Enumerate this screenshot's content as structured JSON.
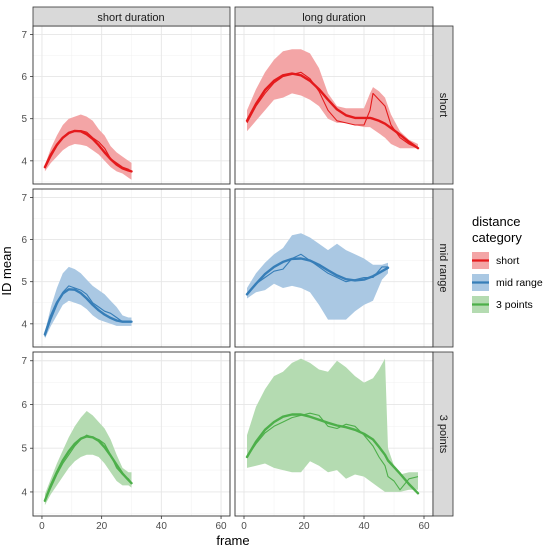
{
  "chart_data": {
    "type": "line",
    "xlabel": "frame",
    "ylabel": "ID mean",
    "x_ticks": [
      0,
      20,
      40,
      60
    ],
    "y_ticks": [
      4,
      5,
      6,
      7
    ],
    "xlim": [
      -3,
      63
    ],
    "ylim": [
      3.45,
      7.2
    ],
    "grid": true,
    "column_facets": [
      "short duration",
      "long duration"
    ],
    "row_facets": [
      "short",
      "mid range",
      "3 points"
    ],
    "legend": {
      "title": [
        "distance",
        "category"
      ],
      "position": "right",
      "entries": [
        "short",
        "mid range",
        "3 points"
      ]
    },
    "colors": {
      "short": "#e41a1c",
      "mid range": "#377eb8",
      "3 points": "#4daf4a",
      "short_fill": "#f3a5a6",
      "mid range_fill": "#aac8e3",
      "3 points_fill": "#b4dbb1"
    },
    "panels": [
      {
        "column": "short duration",
        "row": "short",
        "category": "short",
        "x": [
          1,
          3,
          5,
          7,
          9,
          11,
          13,
          15,
          17,
          19,
          21,
          23,
          25,
          27,
          29,
          30
        ],
        "mean": [
          3.82,
          4.1,
          4.35,
          4.55,
          4.68,
          4.72,
          4.72,
          4.68,
          4.55,
          4.45,
          4.3,
          4.05,
          3.95,
          3.85,
          3.8,
          3.75
        ],
        "lower": [
          3.75,
          3.95,
          4.1,
          4.25,
          4.35,
          4.4,
          4.38,
          4.35,
          4.25,
          4.15,
          4.0,
          3.85,
          3.75,
          3.7,
          3.6,
          3.55
        ],
        "upper": [
          3.9,
          4.3,
          4.6,
          4.85,
          5.0,
          5.05,
          5.1,
          5.05,
          4.95,
          4.75,
          4.6,
          4.35,
          4.2,
          4.1,
          4.0,
          3.95
        ],
        "smooth": [
          3.85,
          4.15,
          4.38,
          4.55,
          4.66,
          4.71,
          4.7,
          4.63,
          4.52,
          4.37,
          4.2,
          4.04,
          3.91,
          3.82,
          3.77,
          3.75
        ]
      },
      {
        "column": "long duration",
        "row": "short",
        "category": "short",
        "x": [
          1,
          4,
          7,
          10,
          13,
          16,
          19,
          22,
          25,
          28,
          31,
          34,
          37,
          40,
          42,
          43,
          45,
          47,
          49,
          52,
          55,
          58
        ],
        "mean": [
          4.9,
          5.3,
          5.6,
          5.85,
          6.0,
          6.05,
          6.1,
          5.95,
          5.65,
          5.2,
          4.95,
          4.9,
          4.85,
          4.85,
          5.2,
          5.6,
          5.45,
          5.3,
          4.85,
          4.55,
          4.4,
          4.3
        ],
        "lower": [
          4.7,
          4.95,
          5.2,
          5.45,
          5.5,
          5.6,
          5.55,
          5.45,
          5.3,
          5.0,
          4.9,
          4.9,
          4.85,
          4.8,
          4.8,
          4.75,
          4.65,
          4.55,
          4.4,
          4.3,
          4.3,
          4.3
        ],
        "upper": [
          5.2,
          5.7,
          6.1,
          6.4,
          6.6,
          6.65,
          6.65,
          6.55,
          6.2,
          5.6,
          5.3,
          5.25,
          5.25,
          5.25,
          5.6,
          5.75,
          5.65,
          5.5,
          5.1,
          4.7,
          4.5,
          4.4
        ],
        "smooth": [
          4.95,
          5.35,
          5.68,
          5.9,
          6.03,
          6.07,
          6.03,
          5.9,
          5.7,
          5.45,
          5.22,
          5.08,
          5.02,
          5.02,
          5.02,
          5.0,
          4.95,
          4.88,
          4.78,
          4.62,
          4.45,
          4.3
        ]
      },
      {
        "column": "short duration",
        "row": "mid range",
        "category": "mid range",
        "x": [
          1,
          3,
          5,
          7,
          9,
          11,
          13,
          15,
          17,
          19,
          21,
          23,
          25,
          27,
          29,
          30
        ],
        "mean": [
          3.7,
          4.1,
          4.45,
          4.75,
          4.9,
          4.85,
          4.8,
          4.7,
          4.5,
          4.4,
          4.3,
          4.25,
          4.15,
          4.05,
          4.05,
          4.05
        ],
        "lower": [
          3.65,
          3.95,
          4.2,
          4.45,
          4.55,
          4.5,
          4.45,
          4.35,
          4.2,
          4.1,
          4.05,
          4.0,
          3.95,
          3.95,
          3.95,
          3.95
        ],
        "upper": [
          3.8,
          4.4,
          4.85,
          5.2,
          5.35,
          5.3,
          5.2,
          5.05,
          4.9,
          4.8,
          4.7,
          4.55,
          4.4,
          4.2,
          4.15,
          4.15
        ],
        "smooth": [
          3.75,
          4.18,
          4.5,
          4.72,
          4.82,
          4.81,
          4.73,
          4.6,
          4.45,
          4.32,
          4.22,
          4.14,
          4.08,
          4.05,
          4.05,
          4.05
        ]
      },
      {
        "column": "long duration",
        "row": "mid range",
        "category": "mid range",
        "x": [
          1,
          4,
          7,
          10,
          13,
          16,
          19,
          22,
          25,
          28,
          31,
          34,
          37,
          40,
          43,
          46,
          48
        ],
        "mean": [
          4.7,
          4.95,
          5.1,
          5.25,
          5.3,
          5.55,
          5.65,
          5.5,
          5.35,
          5.2,
          5.1,
          5.0,
          5.05,
          5.1,
          5.1,
          5.35,
          5.35
        ],
        "lower": [
          4.6,
          4.75,
          4.8,
          4.95,
          4.85,
          4.9,
          4.85,
          4.75,
          4.45,
          4.1,
          4.1,
          4.1,
          4.3,
          4.45,
          4.55,
          5.05,
          5.2
        ],
        "upper": [
          4.85,
          5.2,
          5.45,
          5.65,
          5.8,
          6.1,
          6.15,
          6.05,
          5.9,
          5.75,
          5.9,
          5.75,
          5.65,
          5.55,
          5.4,
          5.4,
          5.45
        ],
        "smooth": [
          4.7,
          4.95,
          5.18,
          5.35,
          5.47,
          5.54,
          5.55,
          5.5,
          5.4,
          5.27,
          5.15,
          5.06,
          5.03,
          5.05,
          5.13,
          5.25,
          5.33
        ]
      },
      {
        "column": "short duration",
        "row": "3 points",
        "category": "3 points",
        "x": [
          1,
          3,
          5,
          7,
          9,
          11,
          13,
          15,
          17,
          19,
          21,
          23,
          25,
          27,
          29,
          30
        ],
        "mean": [
          3.8,
          4.1,
          4.4,
          4.65,
          4.85,
          5.05,
          5.2,
          5.3,
          5.25,
          5.2,
          5.1,
          4.85,
          4.55,
          4.4,
          4.3,
          4.2
        ],
        "lower": [
          3.7,
          3.95,
          4.15,
          4.35,
          4.55,
          4.7,
          4.8,
          4.85,
          4.85,
          4.8,
          4.65,
          4.45,
          4.25,
          4.15,
          4.15,
          4.1
        ],
        "upper": [
          3.95,
          4.3,
          4.65,
          4.95,
          5.25,
          5.5,
          5.7,
          5.85,
          5.75,
          5.6,
          5.45,
          5.2,
          4.85,
          4.55,
          4.45,
          4.45
        ],
        "smooth": [
          3.8,
          4.15,
          4.45,
          4.72,
          4.93,
          5.1,
          5.22,
          5.27,
          5.25,
          5.17,
          5.02,
          4.83,
          4.62,
          4.42,
          4.27,
          4.2
        ]
      },
      {
        "column": "long duration",
        "row": "3 points",
        "category": "3 points",
        "x": [
          1,
          4,
          7,
          10,
          13,
          16,
          19,
          22,
          25,
          28,
          31,
          34,
          37,
          40,
          43,
          45,
          47,
          48,
          50,
          52,
          55,
          58
        ],
        "mean": [
          4.8,
          5.1,
          5.35,
          5.5,
          5.6,
          5.7,
          5.75,
          5.8,
          5.75,
          5.5,
          5.45,
          5.55,
          5.5,
          5.3,
          5.05,
          4.8,
          4.6,
          4.35,
          4.25,
          4.05,
          4.3,
          4.35
        ],
        "lower": [
          4.55,
          4.6,
          4.65,
          4.55,
          4.5,
          4.45,
          4.45,
          4.7,
          4.6,
          4.45,
          4.5,
          4.3,
          4.4,
          4.35,
          4.2,
          4.1,
          4.0,
          4.0,
          4.0,
          4.0,
          4.05,
          4.05
        ],
        "upper": [
          5.3,
          5.95,
          6.35,
          6.65,
          6.75,
          6.95,
          7.05,
          6.95,
          6.8,
          6.75,
          7.0,
          6.85,
          6.65,
          6.5,
          6.6,
          6.8,
          7.05,
          5.0,
          4.6,
          4.4,
          4.45,
          4.45
        ],
        "smooth": [
          4.8,
          5.15,
          5.42,
          5.6,
          5.72,
          5.77,
          5.77,
          5.72,
          5.65,
          5.58,
          5.52,
          5.48,
          5.42,
          5.33,
          5.2,
          5.03,
          4.85,
          4.72,
          4.57,
          4.42,
          4.18,
          3.97
        ]
      }
    ]
  }
}
